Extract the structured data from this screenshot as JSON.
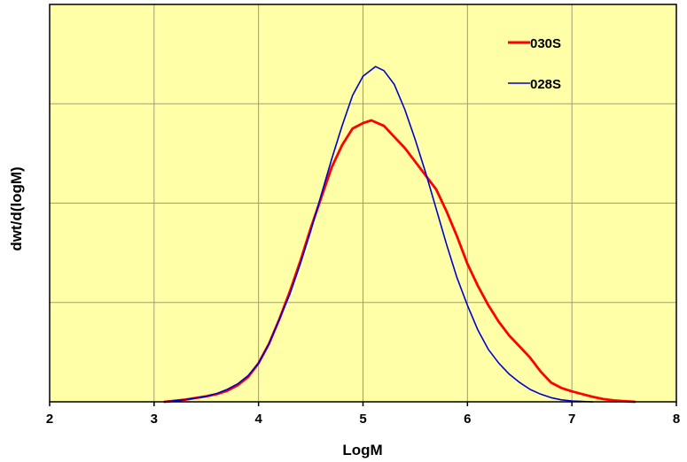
{
  "chart_data": {
    "type": "line",
    "title": "",
    "xlabel": "LogM",
    "ylabel": "dwt/d(logM)",
    "xlim": [
      2,
      8
    ],
    "ylim": [
      0,
      1.44
    ],
    "xticks": [
      "2",
      "3",
      "4",
      "5",
      "6",
      "7",
      "8"
    ],
    "y_tick_values": [
      0,
      0.36,
      0.72,
      1.08,
      1.44
    ],
    "y_tick_labels_shown": false,
    "grid": true,
    "legend_position": "top-right",
    "background_color": "#FFFFA8",
    "series": [
      {
        "name": "030S",
        "color": "#FF0000",
        "points": [
          [
            3.1,
            0.0
          ],
          [
            3.3,
            0.008
          ],
          [
            3.5,
            0.02
          ],
          [
            3.6,
            0.028
          ],
          [
            3.7,
            0.04
          ],
          [
            3.8,
            0.06
          ],
          [
            3.9,
            0.09
          ],
          [
            4.0,
            0.14
          ],
          [
            4.1,
            0.21
          ],
          [
            4.2,
            0.3
          ],
          [
            4.3,
            0.4
          ],
          [
            4.4,
            0.51
          ],
          [
            4.5,
            0.63
          ],
          [
            4.6,
            0.74
          ],
          [
            4.7,
            0.85
          ],
          [
            4.8,
            0.93
          ],
          [
            4.9,
            0.99
          ],
          [
            5.0,
            1.01
          ],
          [
            5.08,
            1.02
          ],
          [
            5.2,
            1.0
          ],
          [
            5.3,
            0.96
          ],
          [
            5.4,
            0.92
          ],
          [
            5.5,
            0.87
          ],
          [
            5.6,
            0.82
          ],
          [
            5.7,
            0.77
          ],
          [
            5.8,
            0.69
          ],
          [
            5.9,
            0.6
          ],
          [
            6.0,
            0.5
          ],
          [
            6.1,
            0.42
          ],
          [
            6.2,
            0.35
          ],
          [
            6.3,
            0.29
          ],
          [
            6.4,
            0.24
          ],
          [
            6.5,
            0.2
          ],
          [
            6.6,
            0.16
          ],
          [
            6.7,
            0.11
          ],
          [
            6.8,
            0.07
          ],
          [
            6.9,
            0.05
          ],
          [
            7.0,
            0.038
          ],
          [
            7.1,
            0.028
          ],
          [
            7.2,
            0.018
          ],
          [
            7.3,
            0.01
          ],
          [
            7.4,
            0.005
          ],
          [
            7.6,
            0.0
          ]
        ]
      },
      {
        "name": "028S",
        "color": "#0000CC",
        "points": [
          [
            3.1,
            0.0
          ],
          [
            3.3,
            0.008
          ],
          [
            3.5,
            0.02
          ],
          [
            3.6,
            0.03
          ],
          [
            3.7,
            0.045
          ],
          [
            3.8,
            0.065
          ],
          [
            3.9,
            0.095
          ],
          [
            4.0,
            0.14
          ],
          [
            4.1,
            0.21
          ],
          [
            4.2,
            0.3
          ],
          [
            4.3,
            0.39
          ],
          [
            4.4,
            0.5
          ],
          [
            4.5,
            0.62
          ],
          [
            4.6,
            0.75
          ],
          [
            4.7,
            0.88
          ],
          [
            4.8,
            1.0
          ],
          [
            4.9,
            1.11
          ],
          [
            5.0,
            1.18
          ],
          [
            5.12,
            1.215
          ],
          [
            5.2,
            1.2
          ],
          [
            5.3,
            1.15
          ],
          [
            5.4,
            1.06
          ],
          [
            5.5,
            0.95
          ],
          [
            5.6,
            0.83
          ],
          [
            5.7,
            0.7
          ],
          [
            5.8,
            0.57
          ],
          [
            5.9,
            0.45
          ],
          [
            6.0,
            0.35
          ],
          [
            6.1,
            0.26
          ],
          [
            6.2,
            0.19
          ],
          [
            6.3,
            0.14
          ],
          [
            6.4,
            0.1
          ],
          [
            6.5,
            0.07
          ],
          [
            6.6,
            0.045
          ],
          [
            6.7,
            0.028
          ],
          [
            6.8,
            0.015
          ],
          [
            6.9,
            0.007
          ],
          [
            7.0,
            0.003
          ],
          [
            7.2,
            0.0
          ]
        ]
      }
    ]
  }
}
